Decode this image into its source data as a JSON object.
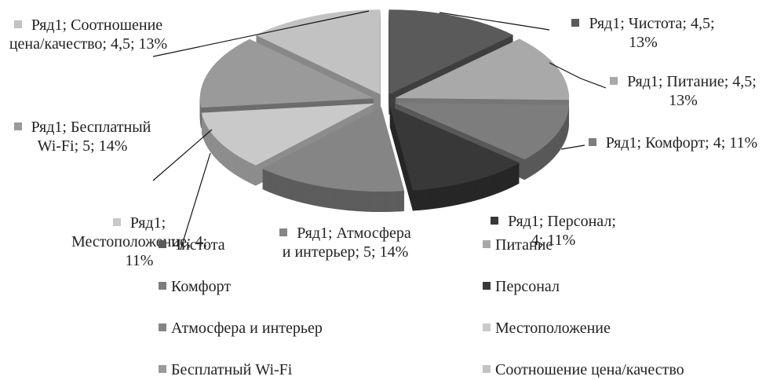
{
  "chart_data": {
    "type": "pie3d",
    "series_name": "Ряд1",
    "categories": [
      "Чистота",
      "Питание",
      "Комфорт",
      "Персонал",
      "Атмосфера и интерьер",
      "Местоположение",
      "Бесплатный Wi-Fi",
      "Соотношение цена/качество"
    ],
    "values": [
      4.5,
      4.5,
      4,
      4,
      5,
      4,
      5,
      4.5
    ],
    "data_labels": [
      "Ряд1; Чистота; 4,5; 13%",
      "Ряд1; Питание; 4,5; 13%",
      "Ряд1; Комфорт; 4; 11%",
      "Ряд1; Персонал; 4; 11%",
      "Ряд1; Атмосфера и интерьер; 5; 14%",
      "Ряд1; Местоположение; 4; 11%",
      "Ряд1; Бесплатный Wi-Fi; 5; 14%",
      "Ряд1; Соотношение цена/качество; 4,5; 13%"
    ],
    "colors": [
      "#5a5a5a",
      "#a9a9a9",
      "#7d7d7d",
      "#383838",
      "#858585",
      "#c9c9c9",
      "#9a9a9a",
      "#c2c2c2"
    ],
    "legend": "bottom"
  }
}
